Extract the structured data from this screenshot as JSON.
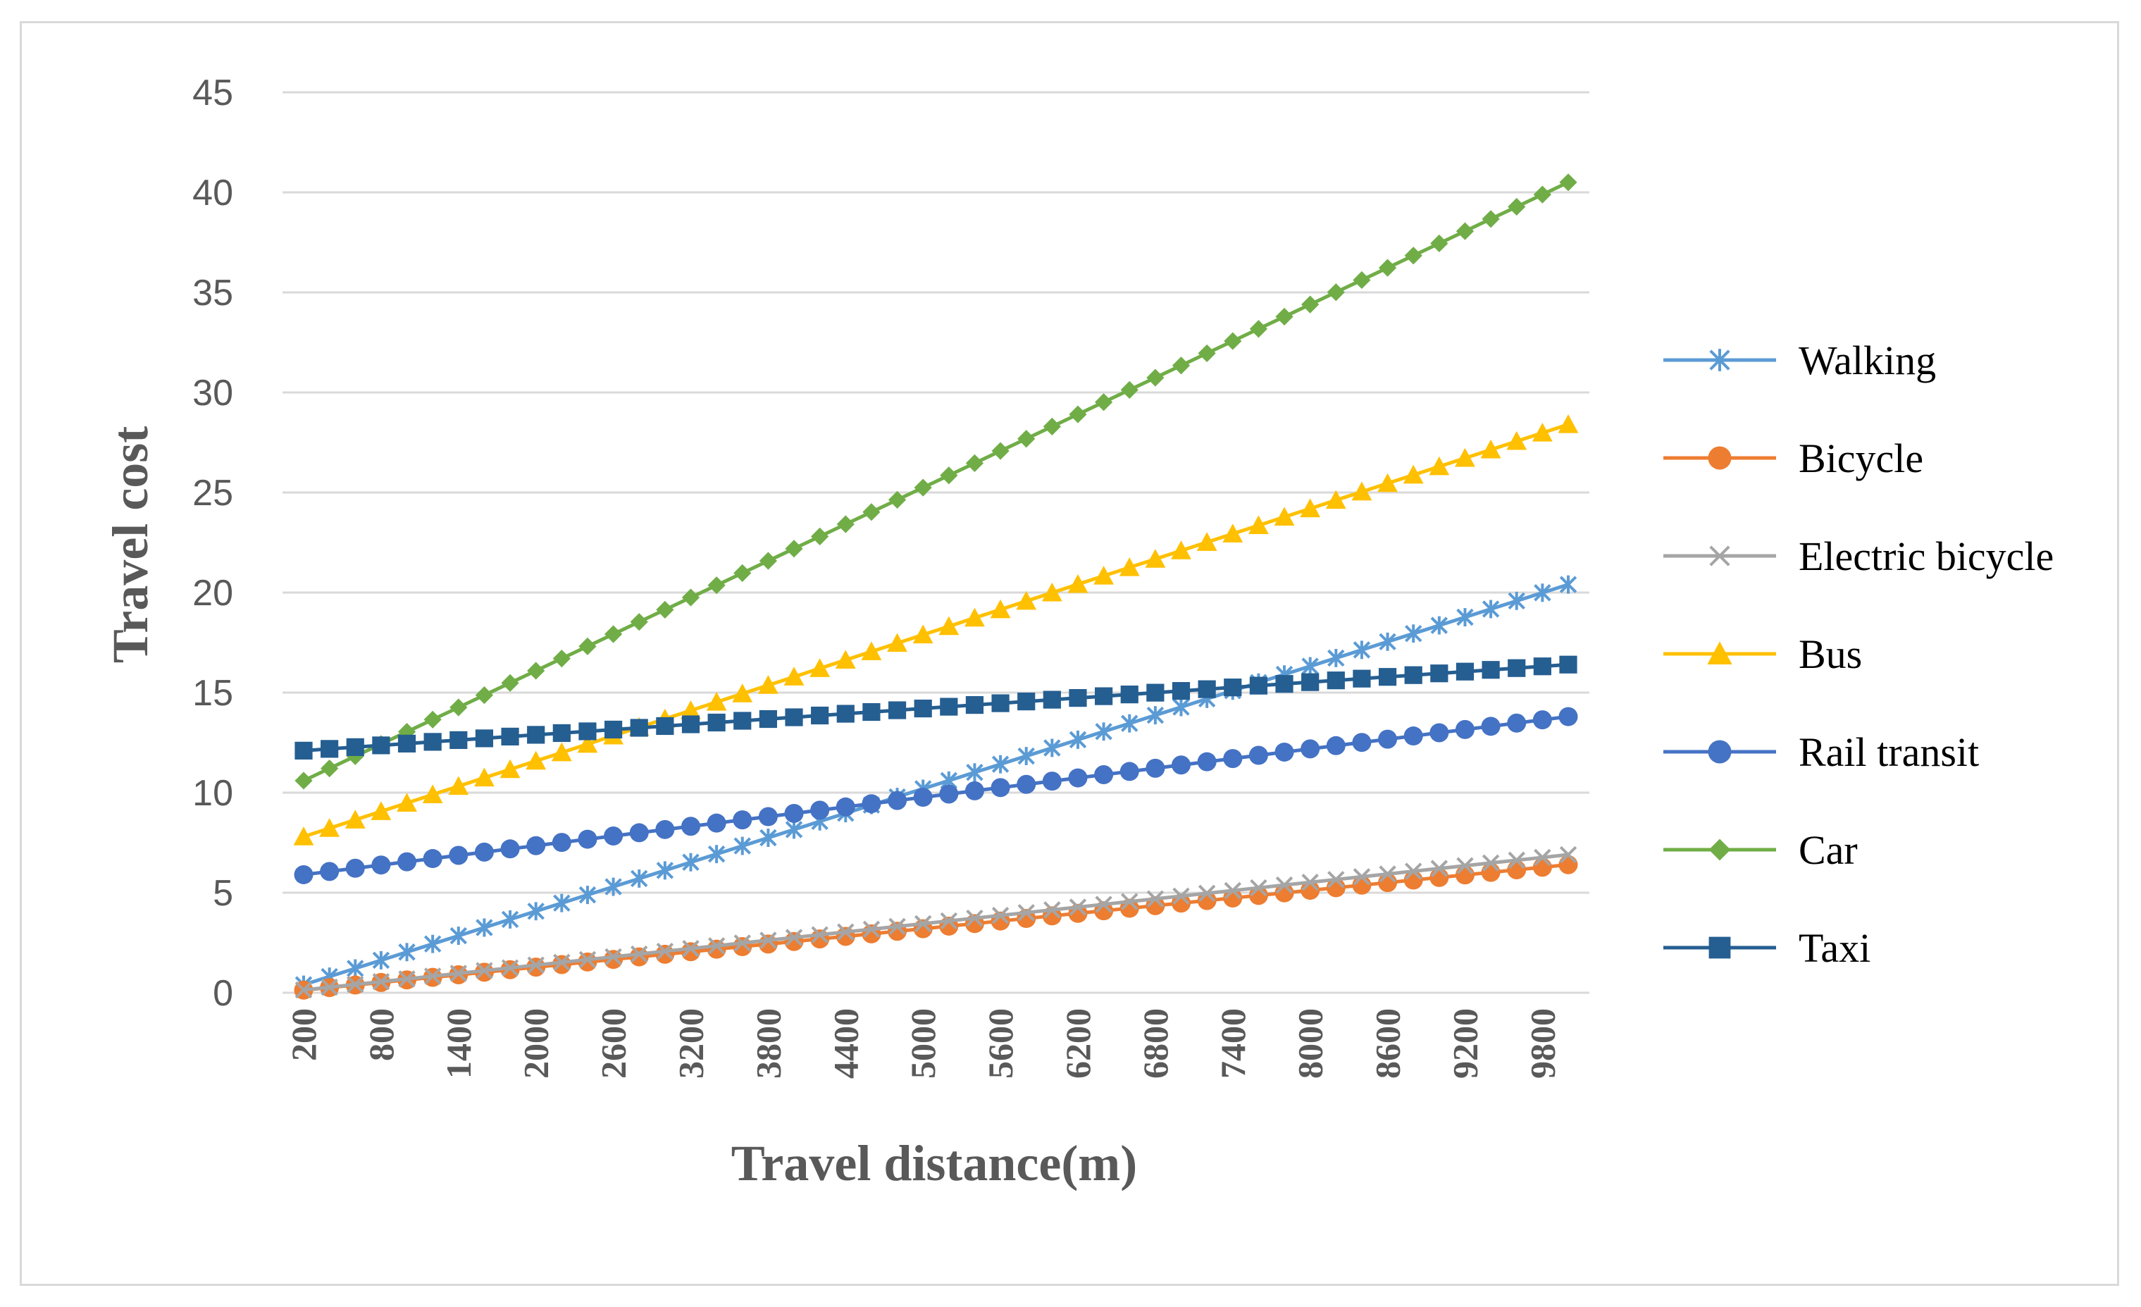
{
  "chart_data": {
    "type": "line",
    "title": "",
    "xlabel": "Travel distance(m)",
    "ylabel": "Travel cost",
    "x_start": 200,
    "x_step": 200,
    "x_end": 10000,
    "x_tick_labels": [
      "200",
      "800",
      "1400",
      "2000",
      "2600",
      "3200",
      "3800",
      "4400",
      "5000",
      "5600",
      "6200",
      "6800",
      "7400",
      "8000",
      "8600",
      "9200",
      "9800"
    ],
    "y_ticks": [
      0,
      5,
      10,
      15,
      20,
      25,
      30,
      35,
      40,
      45
    ],
    "ylim": [
      0,
      45
    ],
    "grid": "horizontal",
    "legend_position": "right",
    "series": [
      {
        "name": "Walking",
        "color": "#5b9bd5",
        "marker": "asterisk",
        "start": 0.4,
        "end": 20.4
      },
      {
        "name": "Bicycle",
        "color": "#ed7d31",
        "marker": "circle",
        "start": 0.13,
        "end": 6.4
      },
      {
        "name": "Electric bicycle",
        "color": "#a5a5a5",
        "marker": "x",
        "start": 0.14,
        "end": 6.9
      },
      {
        "name": "Bus",
        "color": "#ffc000",
        "marker": "triangle",
        "start": 7.8,
        "end": 28.4
      },
      {
        "name": "Rail transit",
        "color": "#4472c4",
        "marker": "circle",
        "start": 5.9,
        "end": 13.8
      },
      {
        "name": "Car",
        "color": "#70ad47",
        "marker": "diamond",
        "start": 10.6,
        "end": 40.5
      },
      {
        "name": "Taxi",
        "color": "#255e91",
        "marker": "square",
        "start": 12.1,
        "end": 16.4
      }
    ]
  }
}
